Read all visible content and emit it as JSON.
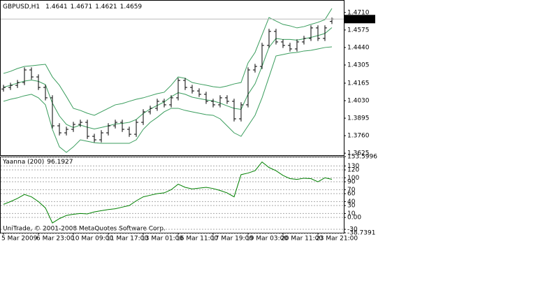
{
  "chart_data": [
    {
      "type": "ohlc",
      "title": "GBPUSD,H1",
      "categories": [
        "5 Mar 2009",
        null,
        null,
        null,
        null,
        "6 Mar 23:00",
        null,
        null,
        null,
        null,
        "10 Mar 09:00",
        null,
        null,
        null,
        null,
        "11 Mar 17:00",
        null,
        null,
        null,
        null,
        "13 Mar 01:00",
        null,
        null,
        null,
        null,
        "16 Mar 11:00",
        null,
        null,
        null,
        null,
        "17 Mar 19:00",
        null,
        null,
        null,
        null,
        "19 Mar 03:00",
        null,
        null,
        null,
        null,
        "20 Mar 11:00",
        null,
        null,
        null,
        null,
        "23 Mar 21:00",
        null,
        null
      ],
      "open": [
        1.412,
        1.4132,
        1.4148,
        1.417,
        1.4267,
        1.4213,
        1.4132,
        1.4052,
        1.3836,
        1.3782,
        1.3809,
        1.3847,
        1.3863,
        1.3755,
        1.3728,
        1.3782,
        1.3836,
        1.3863,
        1.3809,
        1.3771,
        1.3863,
        1.3944,
        1.3971,
        1.4025,
        1.3998,
        1.4052,
        1.4186,
        1.4132,
        1.4105,
        1.4079,
        1.4025,
        1.3998,
        1.4052,
        1.4025,
        1.389,
        1.3998,
        1.4267,
        1.4294,
        1.4456,
        1.4564,
        1.4483,
        1.4456,
        1.4429,
        1.4483,
        1.451,
        1.4591,
        1.451,
        1.4641
      ],
      "high": [
        1.4152,
        1.4168,
        1.419,
        1.4287,
        1.4287,
        1.4233,
        1.4152,
        1.4072,
        1.3856,
        1.3829,
        1.3867,
        1.3883,
        1.3883,
        1.3775,
        1.3802,
        1.3856,
        1.3883,
        1.3883,
        1.3829,
        1.3883,
        1.3964,
        1.3991,
        1.4045,
        1.4045,
        1.4072,
        1.4206,
        1.4206,
        1.4152,
        1.4125,
        1.4099,
        1.4045,
        1.4072,
        1.4072,
        1.4045,
        1.4018,
        1.4287,
        1.4314,
        1.4476,
        1.4584,
        1.4584,
        1.4503,
        1.4476,
        1.4503,
        1.453,
        1.4611,
        1.4611,
        1.4611,
        1.4671
      ],
      "low": [
        1.41,
        1.4112,
        1.4128,
        1.415,
        1.4193,
        1.4112,
        1.4032,
        1.3816,
        1.3762,
        1.3762,
        1.3789,
        1.3827,
        1.3735,
        1.3708,
        1.3708,
        1.3762,
        1.3816,
        1.3789,
        1.3751,
        1.3751,
        1.3843,
        1.3924,
        1.3951,
        1.3978,
        1.3978,
        1.4032,
        1.4112,
        1.4085,
        1.4059,
        1.4005,
        1.3978,
        1.3978,
        1.4005,
        1.387,
        1.387,
        1.3978,
        1.4247,
        1.4274,
        1.4436,
        1.4463,
        1.4436,
        1.4409,
        1.4409,
        1.4463,
        1.449,
        1.449,
        1.449,
        1.4621
      ],
      "close": [
        1.4132,
        1.4148,
        1.417,
        1.4267,
        1.4213,
        1.4132,
        1.4052,
        1.3836,
        1.3782,
        1.3809,
        1.3847,
        1.3863,
        1.3755,
        1.3728,
        1.3782,
        1.3836,
        1.3863,
        1.3809,
        1.3771,
        1.3863,
        1.3944,
        1.3971,
        1.4025,
        1.3998,
        1.4052,
        1.4186,
        1.4132,
        1.4105,
        1.4079,
        1.4025,
        1.3998,
        1.4052,
        1.4025,
        1.389,
        1.3998,
        1.4267,
        1.4294,
        1.4456,
        1.4564,
        1.4483,
        1.4456,
        1.4429,
        1.4483,
        1.451,
        1.4591,
        1.451,
        1.4591,
        1.4659
      ],
      "color": "#000000",
      "lines": [
        {
          "color": "#3a9d5d",
          "values": [
            1.424,
            1.4256,
            1.4278,
            1.4294,
            1.4299,
            1.4305,
            1.431,
            1.4213,
            1.4149,
            1.4062,
            1.3971,
            1.3955,
            1.3933,
            1.3917,
            1.3944,
            1.3971,
            1.3998,
            1.4008,
            1.4025,
            1.4041,
            1.4052,
            1.4068,
            1.4084,
            1.4095,
            1.4149,
            1.4213,
            1.4202,
            1.417,
            1.4159,
            1.4149,
            1.4138,
            1.4132,
            1.4143,
            1.4159,
            1.417,
            1.4321,
            1.4402,
            1.4537,
            1.4671,
            1.4644,
            1.4618,
            1.4607,
            1.4591,
            1.4601,
            1.4618,
            1.4634,
            1.4655,
            1.4741
          ]
        },
        {
          "color": "#3a9d5d",
          "values": [
            1.4133,
            1.4149,
            1.4165,
            1.4181,
            1.4189,
            1.4179,
            1.4154,
            1.4011,
            1.3912,
            1.3847,
            1.3823,
            1.3842,
            1.3825,
            1.3812,
            1.3823,
            1.3836,
            1.385,
            1.3855,
            1.3863,
            1.3885,
            1.3931,
            1.3966,
            1.3993,
            1.402,
            1.406,
            1.4092,
            1.4079,
            1.4057,
            1.4046,
            1.4036,
            1.4028,
            1.4011,
            1.399,
            1.3971,
            1.3963,
            1.4079,
            1.416,
            1.4295,
            1.4442,
            1.451,
            1.4502,
            1.4502,
            1.4497,
            1.4507,
            1.4518,
            1.4532,
            1.4548,
            1.4593
          ]
        },
        {
          "color": "#3a9d5d",
          "values": [
            1.4025,
            1.4041,
            1.4052,
            1.4068,
            1.4079,
            1.4052,
            1.3998,
            1.3809,
            1.3674,
            1.3631,
            1.3674,
            1.3728,
            1.3717,
            1.3706,
            1.3701,
            1.3701,
            1.3701,
            1.3701,
            1.3701,
            1.3728,
            1.3809,
            1.3863,
            1.3901,
            1.3944,
            1.3971,
            1.3971,
            1.3955,
            1.3944,
            1.3933,
            1.3922,
            1.3917,
            1.389,
            1.3836,
            1.3782,
            1.3755,
            1.3836,
            1.3917,
            1.4052,
            1.4213,
            1.4375,
            1.4386,
            1.4397,
            1.4402,
            1.4413,
            1.4418,
            1.4429,
            1.444,
            1.4445
          ]
        }
      ],
      "ylim": [
        1.3615,
        1.479
      ],
      "yticks": [
        {
          "value": 1.471,
          "label": "1.4710"
        },
        1.4575,
        {
          "value": 1.444,
          "label": "1.4440"
        },
        1.4305,
        1.4165,
        {
          "value": 1.403,
          "label": "1.4030"
        },
        1.3895,
        {
          "value": 1.376,
          "label": "1.3760"
        },
        1.3625
      ],
      "grid": false
    },
    {
      "type": "line",
      "title": "Yaanna (200)",
      "values": [
        33,
        40,
        48,
        58,
        52,
        40,
        24,
        -14,
        -3,
        5,
        8,
        10,
        9,
        14,
        17,
        20,
        22,
        26,
        30,
        42,
        52,
        56,
        60,
        62,
        70,
        84,
        76,
        72,
        74,
        76,
        73,
        68,
        62,
        52,
        108,
        112,
        118,
        140,
        126,
        118,
        106,
        98,
        96,
        99,
        98,
        90,
        100,
        96.1927
      ],
      "color": "#008000",
      "ylim": [
        -38.7391,
        153.5996
      ],
      "yticks": [
        153.5996,
        130,
        120,
        100,
        90,
        70,
        60,
        40,
        30,
        10,
        {
          "value": 0,
          "label": "0.00"
        },
        -30,
        -38.7391
      ],
      "grid": true,
      "annotation": "UniTrade, © 2001-2008 MetaQuotes Software Corp."
    }
  ]
}
